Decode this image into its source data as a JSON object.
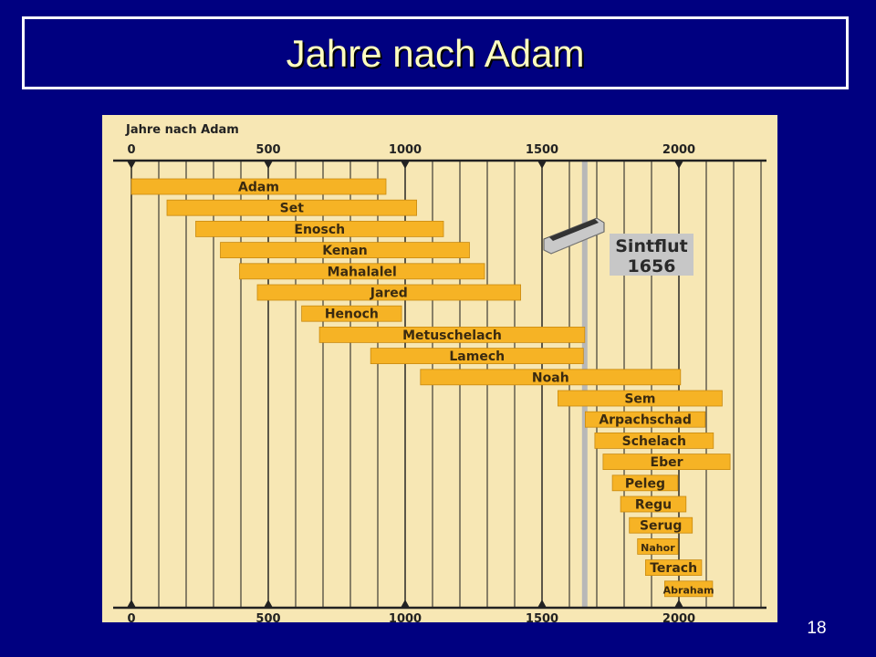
{
  "slide": {
    "title": "Jahre nach Adam",
    "number": "18"
  },
  "chart_data": {
    "type": "bar",
    "title": "Jahre nach Adam",
    "xlim": [
      0,
      2300
    ],
    "xticks": [
      0,
      500,
      1000,
      1500,
      2000
    ],
    "grid": true,
    "bar_color": "#f6b325",
    "background_color": "#f7e7b4",
    "series": [
      {
        "name": "Adam",
        "start": 0,
        "end": 930
      },
      {
        "name": "Set",
        "start": 130,
        "end": 1042
      },
      {
        "name": "Enosch",
        "start": 235,
        "end": 1140
      },
      {
        "name": "Kenan",
        "start": 325,
        "end": 1235
      },
      {
        "name": "Mahalalel",
        "start": 395,
        "end": 1290
      },
      {
        "name": "Jared",
        "start": 460,
        "end": 1422
      },
      {
        "name": "Henoch",
        "start": 622,
        "end": 987
      },
      {
        "name": "Metuschelach",
        "start": 687,
        "end": 1656
      },
      {
        "name": "Lamech",
        "start": 874,
        "end": 1651
      },
      {
        "name": "Noah",
        "start": 1056,
        "end": 2006
      },
      {
        "name": "Sem",
        "start": 1558,
        "end": 2158
      },
      {
        "name": "Arpachschad",
        "start": 1658,
        "end": 2096
      },
      {
        "name": "Schelach",
        "start": 1693,
        "end": 2126
      },
      {
        "name": "Eber",
        "start": 1723,
        "end": 2187
      },
      {
        "name": "Peleg",
        "start": 1757,
        "end": 1996
      },
      {
        "name": "Regu",
        "start": 1787,
        "end": 2026
      },
      {
        "name": "Serug",
        "start": 1819,
        "end": 2049
      },
      {
        "name": "Nahor",
        "start": 1849,
        "end": 1997
      },
      {
        "name": "Terach",
        "start": 1878,
        "end": 2083
      },
      {
        "name": "Abraham",
        "start": 1948,
        "end": 2123
      }
    ],
    "annotation": {
      "line1": "Sintflut",
      "line2": "1656",
      "year": 1656
    }
  }
}
